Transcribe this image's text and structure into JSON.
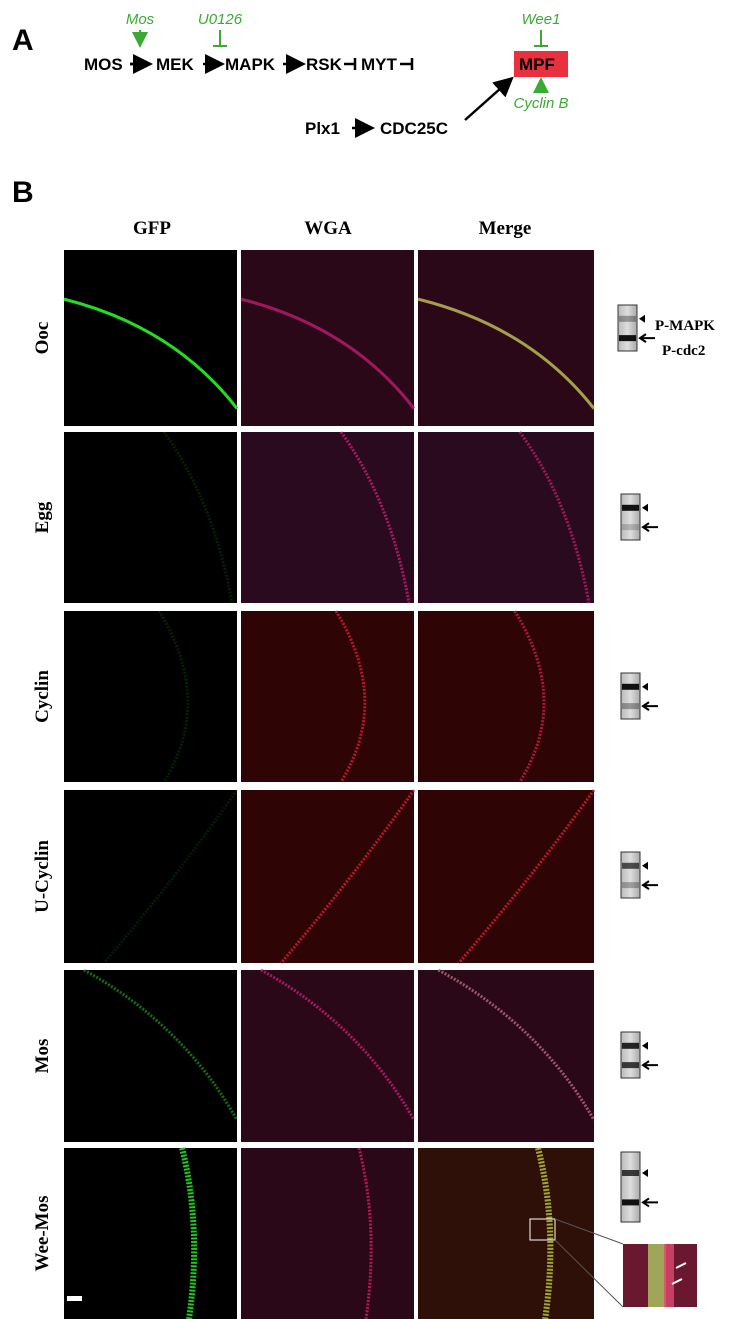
{
  "panel_a": {
    "label": "A",
    "nodes": [
      "MOS",
      "MEK",
      "MAPK",
      "RSK",
      "MYT",
      "MPF",
      "Plx1",
      "CDC25C"
    ],
    "regulators": [
      "Mos",
      "U0126",
      "Wee1",
      "Cyclin B"
    ]
  },
  "panel_b": {
    "label": "B",
    "columns": [
      "GFP",
      "WGA",
      "Merge"
    ],
    "rows": [
      "Ooc",
      "Egg",
      "Cyclin",
      "U-Cyclin",
      "Mos",
      "Wee-Mos"
    ],
    "blot_labels": [
      "P-MAPK",
      "P-cdc2"
    ]
  }
}
